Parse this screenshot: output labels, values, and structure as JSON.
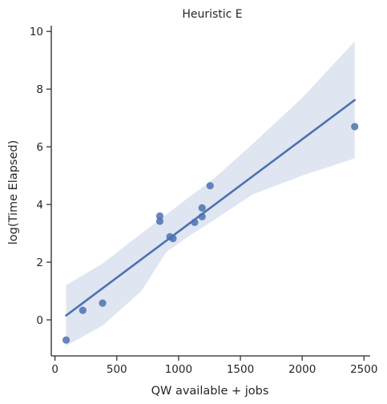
{
  "chart_data": {
    "type": "scatter",
    "title": "Heuristic E",
    "xlabel": "QW available + jobs",
    "ylabel": "log(Time Elapsed)",
    "xlim": [
      -30,
      2550
    ],
    "ylim": [
      -1.25,
      10.2
    ],
    "x_ticks": [
      0,
      500,
      1000,
      1500,
      2000,
      2500
    ],
    "y_ticks": [
      0,
      2,
      4,
      6,
      8,
      10
    ],
    "grid": false,
    "points": [
      {
        "x": 90,
        "y": -0.7
      },
      {
        "x": 225,
        "y": 0.33
      },
      {
        "x": 385,
        "y": 0.58
      },
      {
        "x": 848,
        "y": 3.6
      },
      {
        "x": 848,
        "y": 3.42
      },
      {
        "x": 930,
        "y": 2.88
      },
      {
        "x": 955,
        "y": 2.82
      },
      {
        "x": 1130,
        "y": 3.38
      },
      {
        "x": 1190,
        "y": 3.88
      },
      {
        "x": 1190,
        "y": 3.58
      },
      {
        "x": 1255,
        "y": 4.65
      },
      {
        "x": 2425,
        "y": 6.7
      }
    ],
    "regression": {
      "x": [
        90,
        2425
      ],
      "y": [
        0.15,
        7.62
      ]
    },
    "confidence_band": {
      "x": [
        90,
        385,
        700,
        900,
        1100,
        1300,
        1600,
        2000,
        2425
      ],
      "upper": [
        1.2,
        1.95,
        3.0,
        3.65,
        4.3,
        4.95,
        6.1,
        7.7,
        9.65
      ],
      "lower": [
        -0.9,
        -0.2,
        1.0,
        2.35,
        2.95,
        3.5,
        4.35,
        5.0,
        5.6
      ]
    },
    "colors": {
      "point": "#4c72b0",
      "line": "#4c72b0",
      "band": "#dde4f0",
      "axis": "#262626"
    }
  }
}
